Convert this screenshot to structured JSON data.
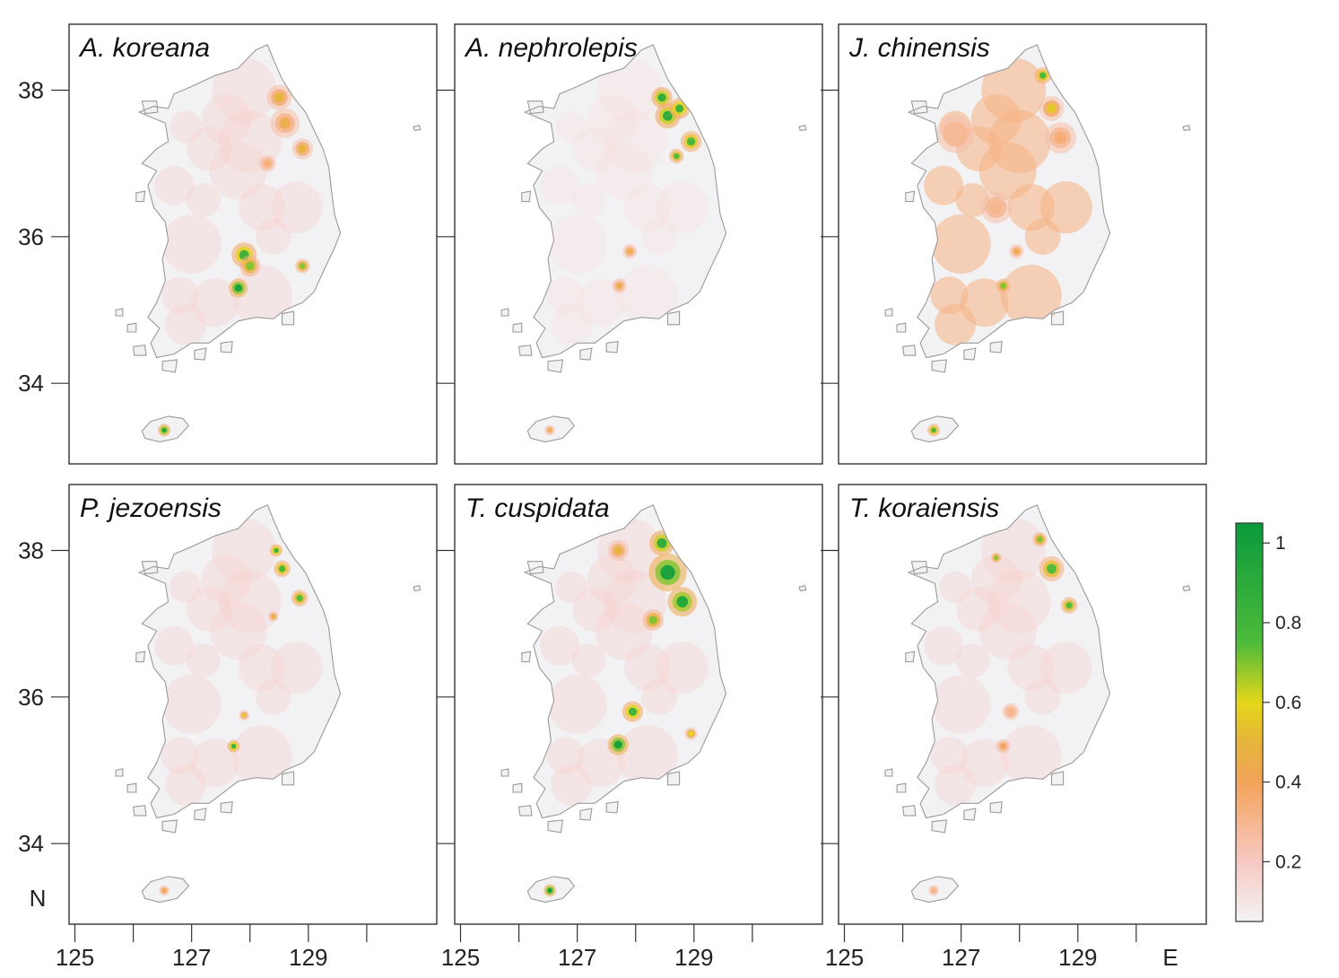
{
  "figure": {
    "panels": [
      {
        "title": "A. koreana",
        "hotspots": [
          {
            "lon": 127.8,
            "lat": 35.3,
            "v": 1.0,
            "s": 0.09
          },
          {
            "lon": 127.9,
            "lat": 35.75,
            "v": 0.85,
            "s": 0.12
          },
          {
            "lon": 128.0,
            "lat": 35.6,
            "v": 0.7,
            "s": 0.1
          },
          {
            "lon": 128.9,
            "lat": 35.6,
            "v": 0.7,
            "s": 0.07
          },
          {
            "lon": 128.5,
            "lat": 37.9,
            "v": 0.5,
            "s": 0.12
          },
          {
            "lon": 128.6,
            "lat": 37.55,
            "v": 0.45,
            "s": 0.14
          },
          {
            "lon": 128.9,
            "lat": 37.2,
            "v": 0.5,
            "s": 0.1
          },
          {
            "lon": 128.3,
            "lat": 37.0,
            "v": 0.35,
            "s": 0.08
          },
          {
            "lon": 126.53,
            "lat": 33.36,
            "v": 0.95,
            "s": 0.06
          }
        ]
      },
      {
        "title": "A. nephrolepis",
        "hotspots": [
          {
            "lon": 128.45,
            "lat": 37.9,
            "v": 0.9,
            "s": 0.1
          },
          {
            "lon": 128.55,
            "lat": 37.65,
            "v": 0.9,
            "s": 0.12
          },
          {
            "lon": 128.75,
            "lat": 37.75,
            "v": 0.85,
            "s": 0.1
          },
          {
            "lon": 128.95,
            "lat": 37.3,
            "v": 0.8,
            "s": 0.1
          },
          {
            "lon": 128.7,
            "lat": 37.1,
            "v": 0.75,
            "s": 0.07
          },
          {
            "lon": 127.9,
            "lat": 35.8,
            "v": 0.45,
            "s": 0.07
          },
          {
            "lon": 127.72,
            "lat": 35.33,
            "v": 0.45,
            "s": 0.07
          },
          {
            "lon": 126.53,
            "lat": 33.36,
            "v": 0.45,
            "s": 0.05
          }
        ]
      },
      {
        "title": "J. chinensis",
        "hotspots": [
          {
            "lon": 128.4,
            "lat": 38.2,
            "v": 0.8,
            "s": 0.08
          },
          {
            "lon": 128.55,
            "lat": 37.75,
            "v": 0.55,
            "s": 0.12
          },
          {
            "lon": 128.7,
            "lat": 37.35,
            "v": 0.35,
            "s": 0.15
          },
          {
            "lon": 127.72,
            "lat": 35.33,
            "v": 0.7,
            "s": 0.07
          },
          {
            "lon": 127.95,
            "lat": 35.8,
            "v": 0.45,
            "s": 0.07
          },
          {
            "lon": 127.6,
            "lat": 36.4,
            "v": 0.3,
            "s": 0.15
          },
          {
            "lon": 126.9,
            "lat": 37.4,
            "v": 0.28,
            "s": 0.18
          },
          {
            "lon": 126.53,
            "lat": 33.36,
            "v": 0.8,
            "s": 0.06
          }
        ]
      },
      {
        "title": "P. jezoensis",
        "hotspots": [
          {
            "lon": 128.45,
            "lat": 38.0,
            "v": 0.85,
            "s": 0.06
          },
          {
            "lon": 128.55,
            "lat": 37.75,
            "v": 0.8,
            "s": 0.08
          },
          {
            "lon": 128.85,
            "lat": 37.35,
            "v": 0.75,
            "s": 0.08
          },
          {
            "lon": 127.72,
            "lat": 35.33,
            "v": 0.85,
            "s": 0.06
          },
          {
            "lon": 127.9,
            "lat": 35.75,
            "v": 0.55,
            "s": 0.05
          },
          {
            "lon": 128.4,
            "lat": 37.1,
            "v": 0.5,
            "s": 0.05
          },
          {
            "lon": 126.53,
            "lat": 33.36,
            "v": 0.45,
            "s": 0.05
          }
        ]
      },
      {
        "title": "T. cuspidata",
        "hotspots": [
          {
            "lon": 128.45,
            "lat": 38.1,
            "v": 0.9,
            "s": 0.12
          },
          {
            "lon": 128.55,
            "lat": 37.7,
            "v": 1.0,
            "s": 0.18
          },
          {
            "lon": 128.8,
            "lat": 37.3,
            "v": 0.95,
            "s": 0.14
          },
          {
            "lon": 128.3,
            "lat": 37.05,
            "v": 0.7,
            "s": 0.1
          },
          {
            "lon": 127.7,
            "lat": 38.0,
            "v": 0.5,
            "s": 0.1
          },
          {
            "lon": 127.7,
            "lat": 35.35,
            "v": 1.0,
            "s": 0.1
          },
          {
            "lon": 127.95,
            "lat": 35.8,
            "v": 0.85,
            "s": 0.1
          },
          {
            "lon": 128.95,
            "lat": 35.5,
            "v": 0.6,
            "s": 0.06
          },
          {
            "lon": 126.53,
            "lat": 33.36,
            "v": 1.0,
            "s": 0.06
          }
        ]
      },
      {
        "title": "T. koraiensis",
        "hotspots": [
          {
            "lon": 128.35,
            "lat": 38.15,
            "v": 0.7,
            "s": 0.07
          },
          {
            "lon": 128.55,
            "lat": 37.75,
            "v": 0.75,
            "s": 0.12
          },
          {
            "lon": 128.85,
            "lat": 37.25,
            "v": 0.75,
            "s": 0.08
          },
          {
            "lon": 127.6,
            "lat": 37.9,
            "v": 0.7,
            "s": 0.05
          },
          {
            "lon": 127.72,
            "lat": 35.33,
            "v": 0.4,
            "s": 0.07
          },
          {
            "lon": 127.85,
            "lat": 35.8,
            "v": 0.3,
            "s": 0.08
          },
          {
            "lon": 126.53,
            "lat": 33.36,
            "v": 0.3,
            "s": 0.05
          }
        ]
      }
    ],
    "lat_ticks": [
      {
        "value": 38,
        "label": "38"
      },
      {
        "value": 36,
        "label": "36"
      },
      {
        "value": 34,
        "label": "34"
      }
    ],
    "lon_ticks": [
      {
        "value": 125,
        "label": "125"
      },
      {
        "value": 126,
        "label": ""
      },
      {
        "value": 127,
        "label": "127"
      },
      {
        "value": 128,
        "label": ""
      },
      {
        "value": 129,
        "label": "129"
      },
      {
        "value": 130,
        "label": ""
      }
    ],
    "lat_axis_letter": "N",
    "lon_axis_letter": "E",
    "extent": {
      "lon_min": 124.9,
      "lon_max": 131.2,
      "lat_min": 32.9,
      "lat_max": 38.9
    },
    "colorbar": {
      "ticks": [
        {
          "value": 1.0,
          "label": "1"
        },
        {
          "value": 0.8,
          "label": "0.8"
        },
        {
          "value": 0.6,
          "label": "0.6"
        },
        {
          "value": 0.4,
          "label": "0.4"
        },
        {
          "value": 0.2,
          "label": "0.2"
        }
      ],
      "range": [
        0.05,
        1.05
      ],
      "stops": [
        {
          "value": 0.05,
          "color": "#f3f3f3"
        },
        {
          "value": 0.2,
          "color": "#f7c9c3"
        },
        {
          "value": 0.4,
          "color": "#f3a35a"
        },
        {
          "value": 0.5,
          "color": "#e6b43a"
        },
        {
          "value": 0.6,
          "color": "#e4d71a"
        },
        {
          "value": 0.75,
          "color": "#4dbb3a"
        },
        {
          "value": 1.05,
          "color": "#0a9a3c"
        }
      ]
    },
    "colors": {
      "land": "#f2f2f4",
      "coast": "#9a9a9a",
      "frame": "#333333"
    }
  }
}
